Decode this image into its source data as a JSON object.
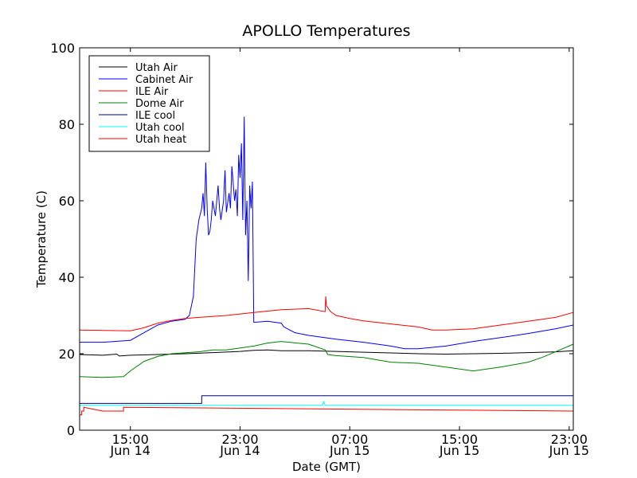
{
  "chart_data": {
    "type": "line",
    "title": "APOLLO Temperatures",
    "xlabel": "Date (GMT)",
    "ylabel": "Temperature (C)",
    "x_unit": "hours since Jun 14 00:00 GMT",
    "xlim": [
      11.3,
      47.3
    ],
    "ylim": [
      0,
      100
    ],
    "yticks": [
      0,
      20,
      40,
      60,
      80,
      100
    ],
    "xticks": [
      {
        "value": 15,
        "time": "15:00",
        "date": "Jun 14"
      },
      {
        "value": 23,
        "time": "23:00",
        "date": "Jun 14"
      },
      {
        "value": 31,
        "time": "07:00",
        "date": "Jun 15"
      },
      {
        "value": 39,
        "time": "15:00",
        "date": "Jun 15"
      },
      {
        "value": 47,
        "time": "23:00",
        "date": "Jun 15"
      }
    ],
    "legend_position": "top-left",
    "series": [
      {
        "name": "Utah Air",
        "color": "#000000",
        "x": [
          11.3,
          13,
          14,
          14.2,
          15,
          17,
          19,
          21,
          23,
          24,
          25,
          26,
          28,
          30,
          32,
          34,
          36,
          38,
          40,
          42,
          44,
          46,
          47.3
        ],
        "y": [
          19.8,
          19.6,
          19.9,
          19.4,
          19.6,
          19.8,
          20.0,
          20.3,
          20.6,
          20.9,
          21.0,
          20.8,
          20.8,
          20.6,
          20.4,
          20.2,
          20.0,
          19.9,
          20.0,
          20.1,
          20.3,
          20.5,
          20.8
        ]
      },
      {
        "name": "Cabinet Air",
        "color": "#0000ff",
        "x": [
          11.3,
          13,
          15,
          16,
          17,
          18,
          19,
          19.3,
          19.6,
          19.8,
          20,
          20.2,
          20.3,
          20.4,
          20.5,
          20.6,
          20.7,
          20.8,
          20.9,
          21,
          21.2,
          21.4,
          21.5,
          21.6,
          21.8,
          21.9,
          22.0,
          22.2,
          22.3,
          22.4,
          22.6,
          22.7,
          22.8,
          22.9,
          23.0,
          23.1,
          23.2,
          23.3,
          23.4,
          23.5,
          23.6,
          23.7,
          23.8,
          23.9,
          24,
          25,
          26,
          26.2,
          27,
          28,
          30,
          32,
          34,
          35,
          36,
          38,
          40,
          42,
          44,
          46,
          47.3
        ],
        "y": [
          23.0,
          23.0,
          23.5,
          25.5,
          27.5,
          28.5,
          29.0,
          30,
          35,
          50,
          55,
          58,
          62,
          56,
          70,
          58,
          51,
          52,
          55,
          60,
          56,
          64,
          58,
          55,
          60,
          68,
          57,
          62,
          58,
          69,
          60,
          63,
          56,
          72,
          66,
          75,
          55,
          82,
          51,
          60,
          39,
          64,
          58,
          65,
          28.2,
          28.5,
          28.0,
          27.0,
          25.5,
          24.8,
          23.8,
          23.0,
          22.0,
          21.3,
          21.3,
          22.0,
          23.2,
          24.2,
          25.3,
          26.5,
          27.5
        ]
      },
      {
        "name": "ILE Air",
        "color": "#ff0000",
        "x": [
          11.3,
          13,
          15,
          16,
          17,
          18,
          19,
          20,
          22,
          24,
          26,
          28,
          29.2,
          29.25,
          29.3,
          29.6,
          30,
          31,
          32,
          34,
          36,
          37,
          38,
          40,
          42,
          44,
          46,
          47.3
        ],
        "y": [
          26.2,
          26.1,
          26.0,
          26.8,
          28.0,
          28.7,
          29.2,
          29.5,
          30.0,
          30.8,
          31.5,
          31.8,
          31.0,
          35.0,
          32.5,
          31.0,
          30.0,
          29.2,
          28.6,
          27.8,
          27.0,
          26.2,
          26.2,
          26.5,
          27.5,
          28.5,
          29.5,
          30.8
        ]
      },
      {
        "name": "Dome Air",
        "color": "#008000",
        "x": [
          11.3,
          13,
          14.5,
          15,
          16,
          17,
          18,
          20,
          21,
          22,
          24,
          25,
          26,
          28,
          29.2,
          29.4,
          30,
          32,
          34,
          36,
          38,
          40,
          42,
          44,
          45,
          46,
          47.3
        ],
        "y": [
          14.0,
          13.8,
          14.0,
          15.5,
          18.0,
          19.3,
          20.0,
          20.5,
          21.0,
          21.0,
          22.0,
          22.8,
          23.2,
          22.5,
          21.0,
          19.8,
          19.5,
          19.0,
          17.8,
          17.5,
          16.5,
          15.5,
          16.5,
          17.8,
          19.0,
          20.5,
          22.5
        ]
      },
      {
        "name": "ILE cool",
        "color": "#000080",
        "x": [
          11.3,
          20.2,
          20.2,
          47.3
        ],
        "y": [
          7.0,
          7.0,
          9.0,
          9.0
        ]
      },
      {
        "name": "Utah cool",
        "color": "#00ffff",
        "x": [
          11.3,
          29.0,
          29.1,
          29.2,
          47.3
        ],
        "y": [
          6.5,
          6.5,
          7.5,
          6.5,
          6.5
        ]
      },
      {
        "name": "Utah heat",
        "color": "#ff0000",
        "x": [
          11.3,
          11.45,
          11.45,
          11.6,
          11.6,
          13.0,
          13.0,
          14.5,
          14.5,
          47.3
        ],
        "y": [
          4.0,
          4.0,
          5.0,
          5.0,
          6.0,
          5.0,
          5.0,
          5.0,
          6.0,
          5.0
        ]
      }
    ]
  }
}
